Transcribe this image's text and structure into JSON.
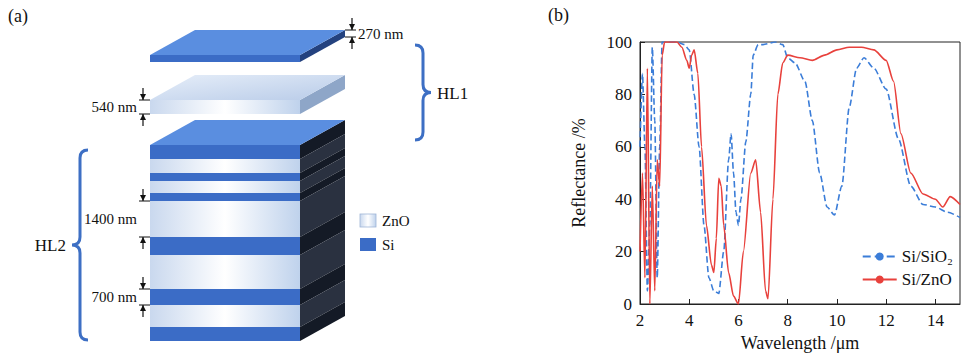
{
  "diagram": {
    "panel_label": "(a)",
    "thickness_labels": {
      "top_si": "270 nm",
      "top_zno": "540 nm",
      "stack_zno": "1400 nm",
      "stack_si": "700 nm"
    },
    "groups": {
      "upper": "HL1",
      "lower": "HL2"
    },
    "legend": [
      "ZnO",
      "Si"
    ]
  },
  "chart_data": {
    "type": "line",
    "panel_label": "(b)",
    "x_label": "Wavelength /μm",
    "y_label": "Reflectance /%",
    "xlim": [
      2,
      15
    ],
    "xticks": [
      2,
      4,
      6,
      8,
      10,
      12,
      14
    ],
    "ylim": [
      0,
      100
    ],
    "yticks": [
      0,
      20,
      40,
      60,
      80,
      100
    ],
    "grid": false,
    "legend": "lower right",
    "series": [
      {
        "name": "Si/SiO₂",
        "color": "#3b7dd8",
        "line_style": "dashed",
        "x": [
          2.0,
          2.1,
          2.2,
          2.3,
          2.4,
          2.5,
          2.6,
          2.7,
          2.8,
          2.9,
          3.0,
          3.5,
          3.8,
          4.0,
          4.2,
          4.4,
          4.6,
          4.8,
          5.0,
          5.2,
          5.4,
          5.6,
          5.7,
          5.8,
          5.9,
          6.0,
          6.1,
          6.3,
          6.5,
          6.6,
          6.8,
          7.0,
          7.5,
          7.8,
          8.0,
          8.3,
          8.7,
          9.0,
          9.3,
          9.6,
          9.9,
          10.2,
          10.5,
          10.8,
          11.1,
          11.5,
          12.0,
          12.5,
          13.0,
          13.5,
          14.0,
          14.5,
          15.0
        ],
        "values": [
          60,
          88,
          60,
          5,
          30,
          98,
          70,
          10,
          60,
          100,
          100,
          100,
          99,
          97,
          80,
          60,
          30,
          10,
          5,
          4,
          20,
          55,
          65,
          50,
          35,
          30,
          40,
          62,
          80,
          95,
          99,
          99,
          100,
          99,
          94,
          92,
          85,
          70,
          50,
          37,
          34,
          45,
          75,
          90,
          94,
          90,
          82,
          63,
          45,
          38,
          37,
          35,
          33
        ]
      },
      {
        "name": "Si/ZnO",
        "color": "#e8413c",
        "line_style": "solid",
        "x": [
          2.0,
          2.1,
          2.2,
          2.3,
          2.4,
          2.5,
          2.6,
          2.7,
          2.8,
          2.9,
          3.0,
          3.5,
          3.7,
          3.9,
          4.0,
          4.1,
          4.2,
          4.35,
          4.5,
          4.7,
          4.9,
          5.0,
          5.1,
          5.2,
          5.3,
          5.4,
          5.6,
          5.8,
          6.0,
          6.2,
          6.5,
          6.7,
          6.9,
          7.1,
          7.2,
          7.4,
          7.6,
          7.8,
          8.0,
          8.5,
          9.0,
          9.5,
          10.0,
          10.5,
          11.0,
          11.5,
          12.0,
          12.3,
          12.6,
          13.0,
          13.5,
          14.0,
          14.3,
          14.6,
          15.0
        ],
        "values": [
          20,
          50,
          10,
          90,
          0,
          45,
          5,
          55,
          45,
          95,
          100,
          100,
          98,
          93,
          90,
          95,
          97,
          88,
          60,
          30,
          15,
          12,
          25,
          48,
          45,
          30,
          12,
          3,
          0,
          20,
          50,
          55,
          35,
          5,
          2,
          40,
          80,
          92,
          95,
          94,
          93,
          95,
          97,
          98,
          98,
          97,
          93,
          85,
          65,
          50,
          42,
          40,
          37,
          41,
          38
        ]
      }
    ]
  }
}
